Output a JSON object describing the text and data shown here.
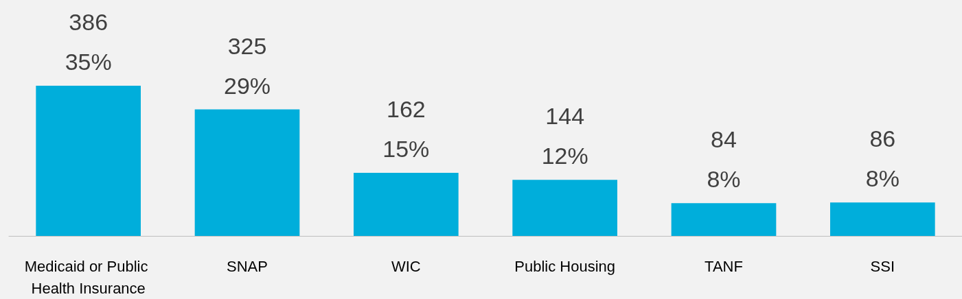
{
  "chart_data": {
    "type": "bar",
    "categories": [
      "Medicaid or Public Health Insurance",
      "SNAP",
      "WIC",
      "Public Housing",
      "TANF",
      "SSI"
    ],
    "values": [
      386,
      325,
      162,
      144,
      84,
      86
    ],
    "value_labels": [
      "386\n35%",
      "325\n29%",
      "162\n15%",
      "144\n12%",
      "84\n8%",
      "86\n8%"
    ],
    "color": "#00aedb"
  }
}
